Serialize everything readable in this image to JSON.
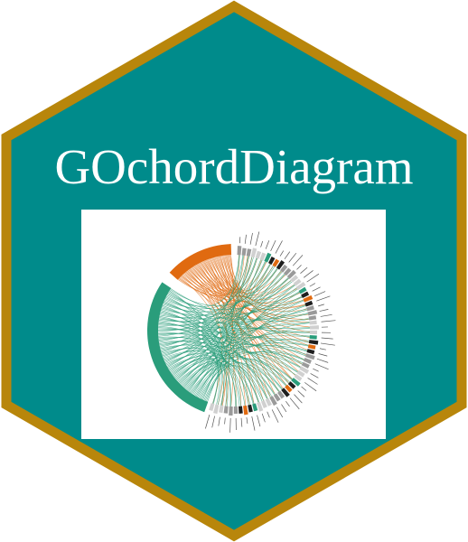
{
  "sticker": {
    "title": "GOchordDiagram",
    "colors": {
      "background": "#ffffff",
      "hex_fill": "#008b8b",
      "hex_border": "#b8860b",
      "title_text": "#ffffff",
      "panel": "#ffffff",
      "group_a": "#2a9d7b",
      "group_b": "#e06a10",
      "gene_gray": "#9a9a9a",
      "gene_dark": "#1e1e1e",
      "gene_light": "#d0d0d0"
    },
    "picture": {
      "kind": "chord-diagram",
      "groups": [
        {
          "color": "group_b",
          "link_count": 60
        },
        {
          "color": "group_a",
          "link_count": 110
        }
      ],
      "gene_segment_count": 56
    }
  }
}
